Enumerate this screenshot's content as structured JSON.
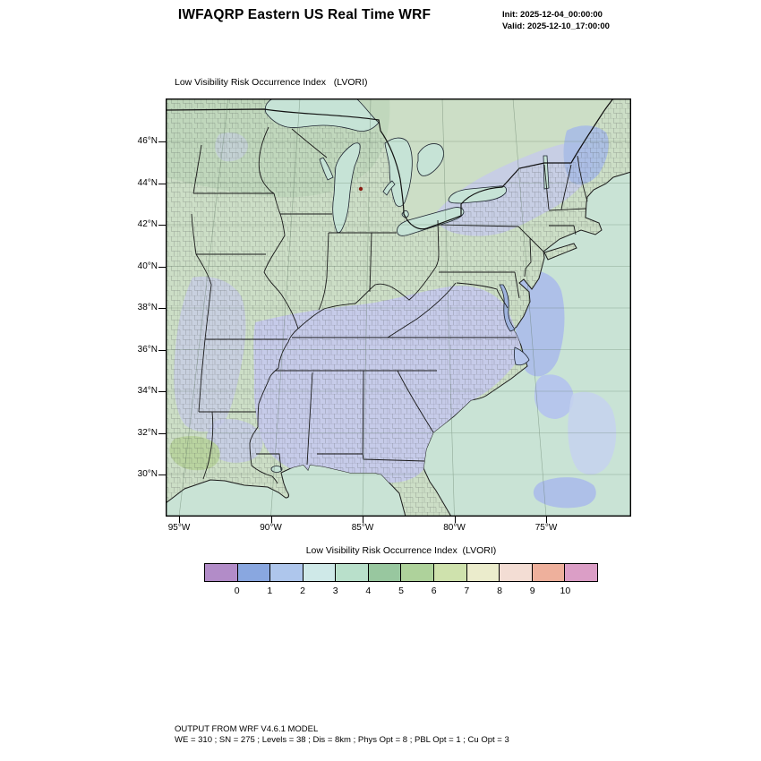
{
  "header": {
    "title": "IWFAQRP Eastern US Real Time WRF",
    "init": "Init: 2025-12-04_00:00:00",
    "valid": "Valid: 2025-12-10_17:00:00"
  },
  "map": {
    "subtitle": "Low Visibility Risk Occurrence Index   (LVORI)",
    "lat_tick_labels": [
      "46°N",
      "44°N",
      "42°N",
      "40°N",
      "38°N",
      "36°N",
      "34°N",
      "32°N",
      "30°N"
    ],
    "lon_tick_labels": [
      "95°W",
      "90°W",
      "85°W",
      "80°W",
      "75°W"
    ]
  },
  "colorbar": {
    "title": "Low Visibility Risk Occurrence Index  (LVORI)",
    "tick_labels": [
      "0",
      "1",
      "2",
      "3",
      "4",
      "5",
      "6",
      "7",
      "8",
      "9",
      "10"
    ],
    "cell_colors": [
      "#b28cc8",
      "#89a7e0",
      "#aec6ec",
      "#cfe9e8",
      "#b9e0cb",
      "#98c79f",
      "#aed29b",
      "#cfe2ad",
      "#ebeccc",
      "#f3ddd4",
      "#eeb09c",
      "#db9ec6"
    ]
  },
  "footer": {
    "line1": "OUTPUT FROM WRF V4.6.1 MODEL",
    "line2": "WE = 310 ; SN = 275 ; Levels = 38 ; Dis = 8km ; Phys Opt = 8 ; PBL Opt = 1 ; Cu Opt = 3"
  },
  "palette": {
    "ocean": "#c9e3d5",
    "lake_water": "#c6e3d6",
    "land_green": "#ccdec6",
    "north_green": "#b6d2b4",
    "lavender_low_index": "#c6cbe9",
    "maine_blue": "#a8bce4",
    "offshore_blue": "#aec0e8",
    "yellow_green": "#b7d29b",
    "boundary_black": "#1a1a1a",
    "marker_red": "#8a1d12"
  }
}
